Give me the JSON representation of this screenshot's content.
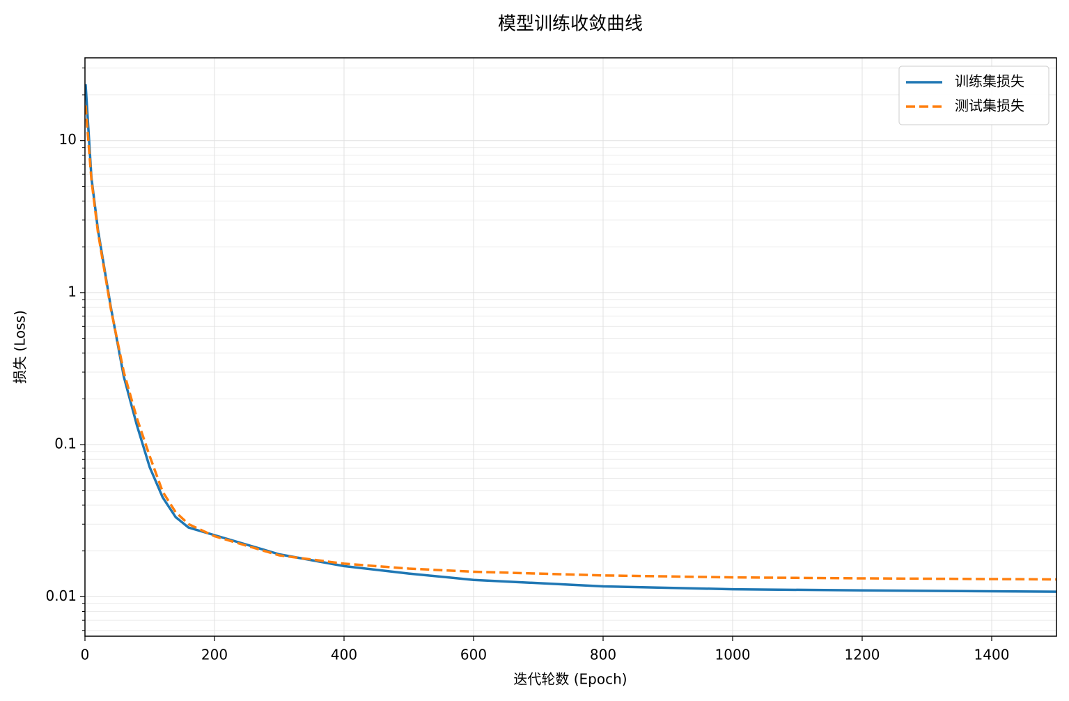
{
  "chart_data": {
    "type": "line",
    "title": "模型训练收敛曲线",
    "xlabel": "迭代轮数 (Epoch)",
    "ylabel": "损失 (Loss)",
    "x": [
      1,
      10,
      20,
      40,
      60,
      80,
      100,
      120,
      140,
      160,
      200,
      300,
      400,
      500,
      600,
      800,
      1000,
      1200,
      1500
    ],
    "series": [
      {
        "name": "训练集损失",
        "color": "#1f77b4",
        "style": "solid",
        "values": [
          23.5,
          5.7,
          2.6,
          0.8,
          0.28,
          0.135,
          0.071,
          0.045,
          0.0334,
          0.0285,
          0.0254,
          0.019,
          0.0159,
          0.0142,
          0.0129,
          0.0117,
          0.0112,
          0.011,
          0.0108
        ]
      },
      {
        "name": "测试集损失",
        "color": "#ff7f0e",
        "style": "dashed",
        "values": [
          17,
          5.5,
          2.5,
          0.78,
          0.3,
          0.15,
          0.084,
          0.049,
          0.036,
          0.03,
          0.025,
          0.0187,
          0.0165,
          0.0153,
          0.0146,
          0.0138,
          0.0134,
          0.0132,
          0.013
        ]
      }
    ],
    "xlim": [
      0,
      1500
    ],
    "xticks": [
      0,
      200,
      400,
      600,
      800,
      1000,
      1200,
      1400
    ],
    "ylim": [
      0.0055,
      35
    ],
    "yticks": [
      0.01,
      0.1,
      1,
      10
    ],
    "yscale": "log",
    "grid": true,
    "legend": "upper right"
  }
}
